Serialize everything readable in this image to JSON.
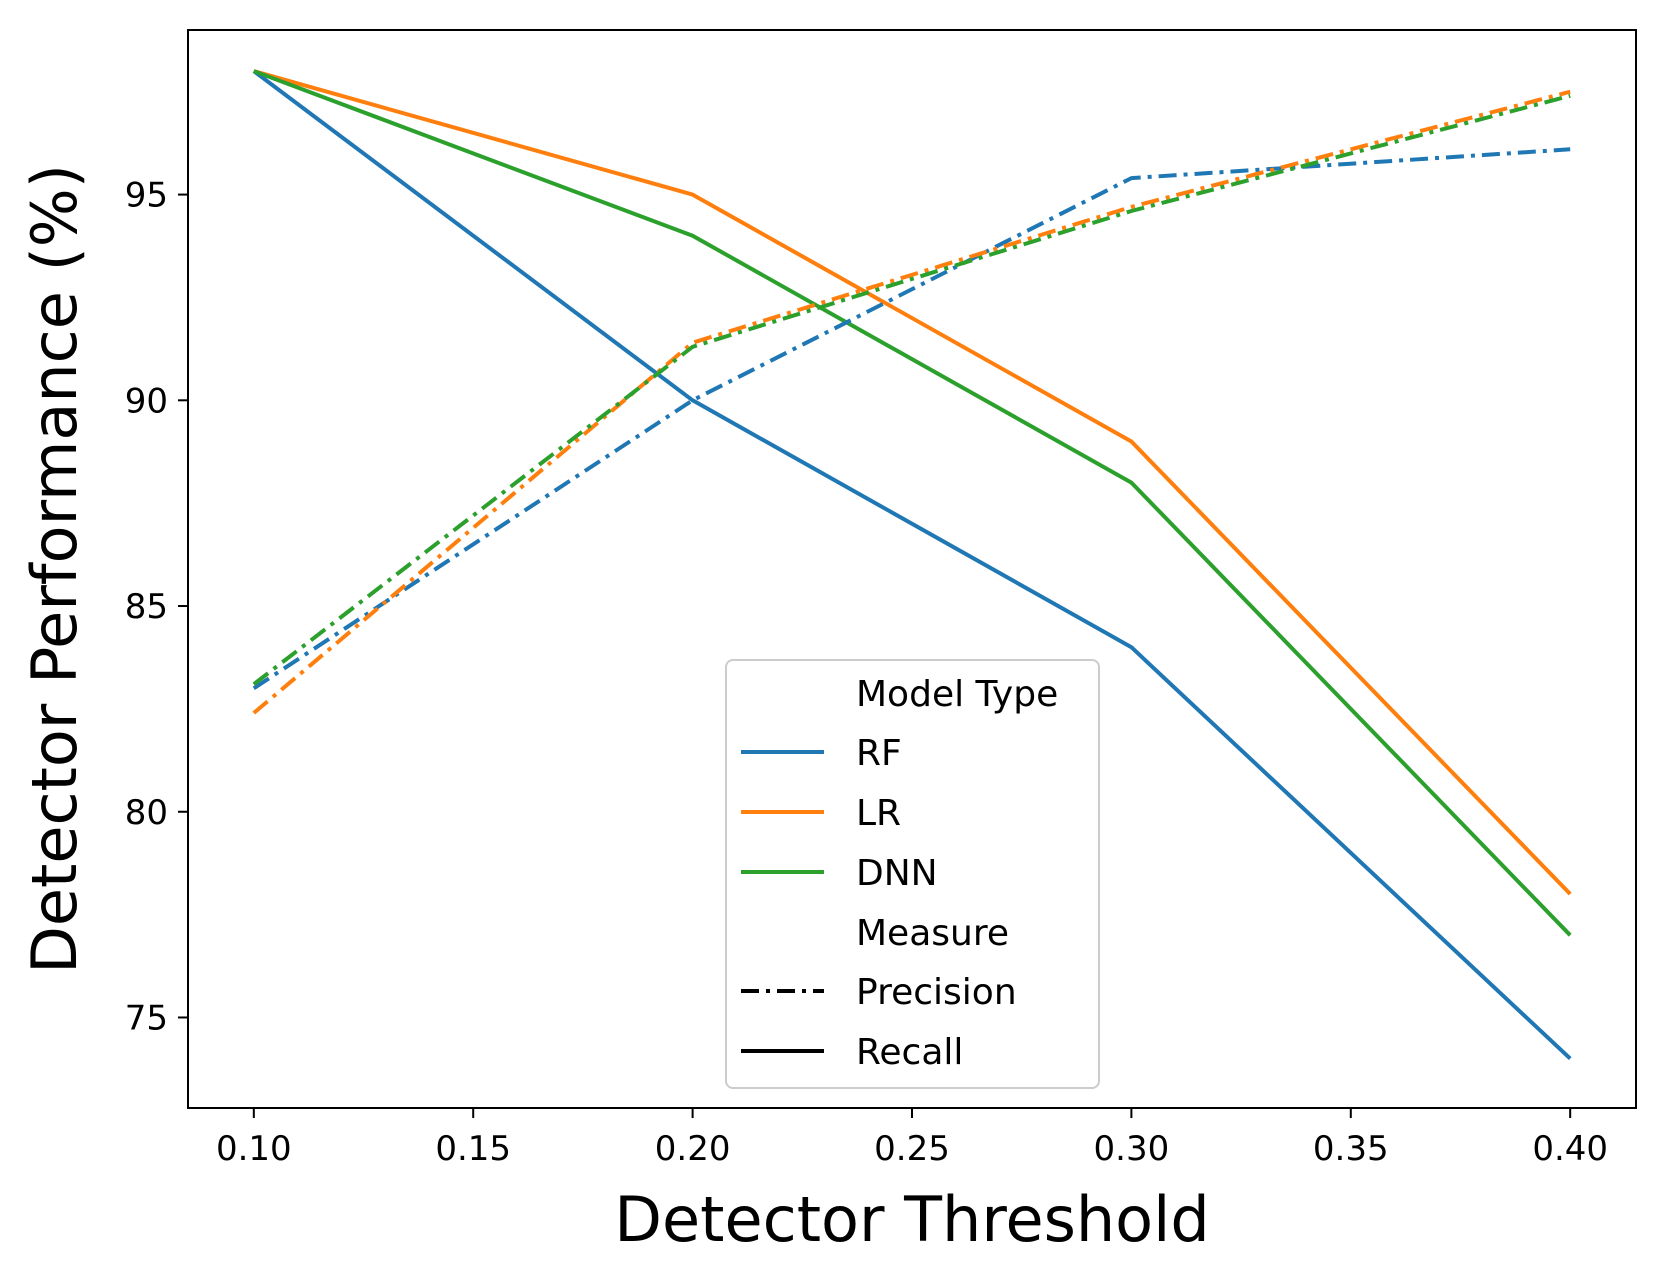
{
  "chart_data": {
    "type": "line",
    "xlabel": "Detector Threshold",
    "ylabel": "Detector Performance (%)",
    "x": [
      0.1,
      0.2,
      0.3,
      0.4
    ],
    "xlim": [
      0.085,
      0.415
    ],
    "ylim": [
      72.8,
      99.0
    ],
    "xticks": [
      0.1,
      0.15,
      0.2,
      0.25,
      0.3,
      0.35,
      0.4
    ],
    "xtick_labels": [
      "0.10",
      "0.15",
      "0.20",
      "0.25",
      "0.30",
      "0.35",
      "0.40"
    ],
    "yticks": [
      75,
      80,
      85,
      90,
      95
    ],
    "ytick_labels": [
      "75",
      "80",
      "85",
      "90",
      "95"
    ],
    "grid": false,
    "legend": {
      "placement": "lower-center",
      "model_title": "Model Type",
      "measure_title": "Measure",
      "models": [
        "RF",
        "LR",
        "DNN"
      ],
      "measures": [
        "Precision",
        "Recall"
      ]
    },
    "colors": {
      "RF": "#1f77b4",
      "LR": "#ff7f0e",
      "DNN": "#2ca02c",
      "measure_key": "#000000"
    },
    "series": [
      {
        "name": "RF",
        "model": "RF",
        "measure": "Recall",
        "values": [
          98.0,
          90.0,
          84.0,
          74.0
        ]
      },
      {
        "name": "LR",
        "model": "LR",
        "measure": "Recall",
        "values": [
          98.0,
          95.0,
          89.0,
          78.0
        ]
      },
      {
        "name": "DNN",
        "model": "DNN",
        "measure": "Recall",
        "values": [
          98.0,
          94.0,
          88.0,
          77.0
        ]
      },
      {
        "name": "RF",
        "model": "RF",
        "measure": "Precision",
        "values": [
          83.0,
          90.0,
          95.4,
          96.1
        ]
      },
      {
        "name": "LR",
        "model": "LR",
        "measure": "Precision",
        "values": [
          82.4,
          91.4,
          94.7,
          97.5
        ]
      },
      {
        "name": "DNN",
        "model": "DNN",
        "measure": "Precision",
        "values": [
          83.1,
          91.3,
          94.6,
          97.4
        ]
      }
    ]
  }
}
